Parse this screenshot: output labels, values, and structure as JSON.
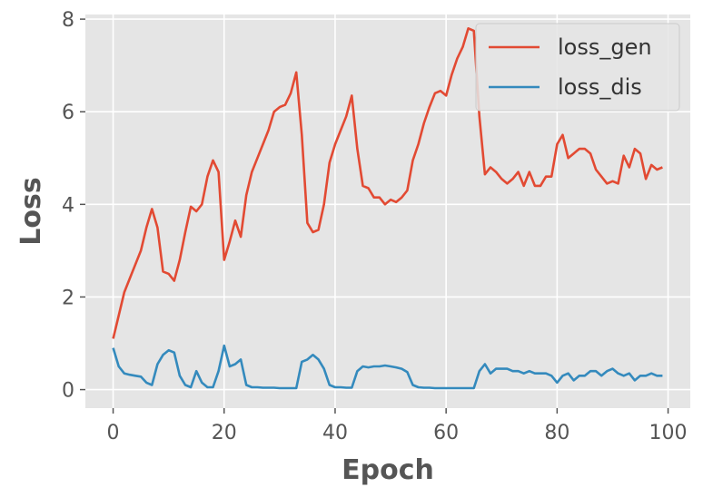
{
  "chart_data": {
    "type": "line",
    "title": "",
    "xlabel": "Epoch",
    "ylabel": "Loss",
    "xlim": [
      -5,
      104
    ],
    "ylim": [
      -0.4,
      8.1
    ],
    "xticks": [
      0,
      20,
      40,
      60,
      80,
      100
    ],
    "yticks": [
      0,
      2,
      4,
      6,
      8
    ],
    "grid": true,
    "legend_position": "top-right",
    "series": [
      {
        "name": "loss_gen",
        "color": "#E24A33",
        "x": [
          0,
          1,
          2,
          3,
          4,
          5,
          6,
          7,
          8,
          9,
          10,
          11,
          12,
          13,
          14,
          15,
          16,
          17,
          18,
          19,
          20,
          21,
          22,
          23,
          24,
          25,
          26,
          27,
          28,
          29,
          30,
          31,
          32,
          33,
          34,
          35,
          36,
          37,
          38,
          39,
          40,
          41,
          42,
          43,
          44,
          45,
          46,
          47,
          48,
          49,
          50,
          51,
          52,
          53,
          54,
          55,
          56,
          57,
          58,
          59,
          60,
          61,
          62,
          63,
          64,
          65,
          66,
          67,
          68,
          69,
          70,
          71,
          72,
          73,
          74,
          75,
          76,
          77,
          78,
          79,
          80,
          81,
          82,
          83,
          84,
          85,
          86,
          87,
          88,
          89,
          90,
          91,
          92,
          93,
          94,
          95,
          96,
          97,
          98,
          99
        ],
        "y": [
          1.1,
          1.6,
          2.1,
          2.4,
          2.7,
          3.0,
          3.5,
          3.9,
          3.5,
          2.55,
          2.5,
          2.35,
          2.8,
          3.4,
          3.95,
          3.85,
          4.0,
          4.6,
          4.95,
          4.7,
          2.8,
          3.2,
          3.65,
          3.3,
          4.2,
          4.7,
          5.0,
          5.3,
          5.6,
          6.0,
          6.1,
          6.15,
          6.4,
          6.85,
          5.5,
          3.6,
          3.4,
          3.45,
          4.0,
          4.9,
          5.3,
          5.6,
          5.9,
          6.35,
          5.2,
          4.4,
          4.35,
          4.15,
          4.15,
          4.0,
          4.1,
          4.05,
          4.15,
          4.3,
          4.95,
          5.3,
          5.75,
          6.1,
          6.4,
          6.45,
          6.35,
          6.8,
          7.15,
          7.4,
          7.8,
          7.75,
          5.9,
          4.65,
          4.8,
          4.7,
          4.55,
          4.45,
          4.55,
          4.7,
          4.4,
          4.7,
          4.4,
          4.4,
          4.6,
          4.6,
          5.3,
          5.5,
          5.0,
          5.1,
          5.2,
          5.2,
          5.1,
          4.75,
          4.6,
          4.45,
          4.5,
          4.45,
          5.05,
          4.8,
          5.2,
          5.1,
          4.55,
          4.85,
          4.75,
          4.8
        ]
      },
      {
        "name": "loss_dis",
        "color": "#348ABD",
        "x": [
          0,
          1,
          2,
          3,
          4,
          5,
          6,
          7,
          8,
          9,
          10,
          11,
          12,
          13,
          14,
          15,
          16,
          17,
          18,
          19,
          20,
          21,
          22,
          23,
          24,
          25,
          26,
          27,
          28,
          29,
          30,
          31,
          32,
          33,
          34,
          35,
          36,
          37,
          38,
          39,
          40,
          41,
          42,
          43,
          44,
          45,
          46,
          47,
          48,
          49,
          50,
          51,
          52,
          53,
          54,
          55,
          56,
          57,
          58,
          59,
          60,
          61,
          62,
          63,
          64,
          65,
          66,
          67,
          68,
          69,
          70,
          71,
          72,
          73,
          74,
          75,
          76,
          77,
          78,
          79,
          80,
          81,
          82,
          83,
          84,
          85,
          86,
          87,
          88,
          89,
          90,
          91,
          92,
          93,
          94,
          95,
          96,
          97,
          98,
          99
        ],
        "y": [
          0.9,
          0.5,
          0.35,
          0.32,
          0.3,
          0.28,
          0.15,
          0.1,
          0.55,
          0.75,
          0.85,
          0.8,
          0.3,
          0.1,
          0.05,
          0.4,
          0.15,
          0.05,
          0.05,
          0.4,
          0.95,
          0.5,
          0.55,
          0.65,
          0.1,
          0.05,
          0.05,
          0.04,
          0.04,
          0.04,
          0.03,
          0.03,
          0.03,
          0.03,
          0.6,
          0.65,
          0.75,
          0.65,
          0.45,
          0.1,
          0.05,
          0.05,
          0.04,
          0.04,
          0.4,
          0.5,
          0.48,
          0.5,
          0.5,
          0.52,
          0.5,
          0.48,
          0.45,
          0.38,
          0.1,
          0.05,
          0.04,
          0.04,
          0.03,
          0.03,
          0.03,
          0.03,
          0.03,
          0.03,
          0.03,
          0.03,
          0.4,
          0.55,
          0.35,
          0.45,
          0.45,
          0.45,
          0.4,
          0.4,
          0.35,
          0.4,
          0.35,
          0.35,
          0.35,
          0.3,
          0.15,
          0.3,
          0.35,
          0.2,
          0.3,
          0.3,
          0.4,
          0.4,
          0.3,
          0.4,
          0.45,
          0.35,
          0.3,
          0.35,
          0.2,
          0.3,
          0.3,
          0.35,
          0.3,
          0.3
        ]
      }
    ]
  }
}
